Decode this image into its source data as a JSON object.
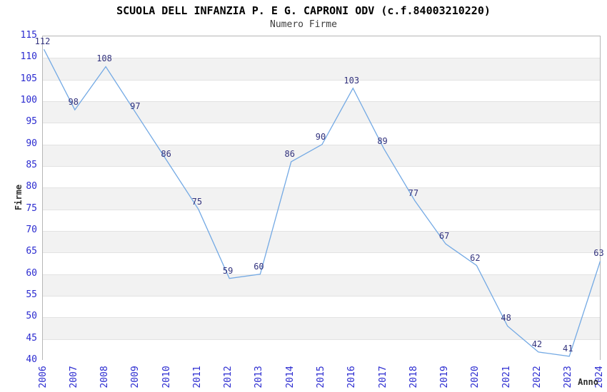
{
  "chart_data": {
    "type": "line",
    "title": "SCUOLA DELL INFANZIA P. E G. CAPRONI ODV (c.f.84003210220)",
    "subtitle": "Numero Firme",
    "xlabel": "Anno",
    "ylabel": "Firme",
    "categories": [
      "2006",
      "2007",
      "2008",
      "2009",
      "2010",
      "2011",
      "2012",
      "2013",
      "2014",
      "2015",
      "2016",
      "2017",
      "2018",
      "2019",
      "2020",
      "2021",
      "2022",
      "2023",
      "2024"
    ],
    "values": [
      112,
      98,
      108,
      97,
      86,
      75,
      59,
      60,
      86,
      90,
      103,
      89,
      77,
      67,
      62,
      48,
      42,
      41,
      63
    ],
    "ylim": [
      40,
      115
    ],
    "ytick_step": 5,
    "yticks": [
      40,
      45,
      50,
      55,
      60,
      65,
      70,
      75,
      80,
      85,
      90,
      95,
      100,
      105,
      110,
      115
    ],
    "grid": true,
    "legend": "none",
    "value_labels_shown": true,
    "band_pattern": "alternating horizontal stripes every 5 units",
    "colors": {
      "line": "#73a9e4",
      "band": "#f2f2f2",
      "grid": "#e2e2e2",
      "border": "#b6b6b6",
      "tick_label": "#2b2bd0",
      "value_label": "#32327d",
      "title": "#000000",
      "subtitle": "#3d3d3d",
      "axis_title": "#2e2e2e"
    }
  }
}
